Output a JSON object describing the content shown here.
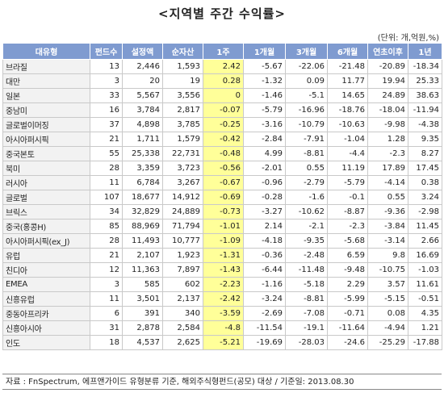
{
  "title": "<지역별 주간 수익률>",
  "unit": "(단위: 개,억원,%)",
  "columns": [
    "대유형",
    "펀드수",
    "설정액",
    "순자산",
    "1주",
    "1개월",
    "3개월",
    "6개월",
    "연초이후",
    "1년"
  ],
  "rows": [
    [
      "브라질",
      "13",
      "2,446",
      "1,593",
      "2.42",
      "-5.67",
      "-22.06",
      "-21.48",
      "-20.89",
      "-18.34"
    ],
    [
      "대만",
      "3",
      "20",
      "19",
      "0.28",
      "-1.32",
      "0.09",
      "11.77",
      "19.94",
      "25.33"
    ],
    [
      "일본",
      "33",
      "5,567",
      "3,556",
      "0",
      "-1.46",
      "-5.1",
      "14.65",
      "24.89",
      "38.63"
    ],
    [
      "중남미",
      "16",
      "3,784",
      "2,817",
      "-0.07",
      "-5.79",
      "-16.96",
      "-18.76",
      "-18.04",
      "-11.94"
    ],
    [
      "글로벌이머징",
      "37",
      "4,898",
      "3,785",
      "-0.25",
      "-3.16",
      "-10.79",
      "-10.63",
      "-9.98",
      "-4.38"
    ],
    [
      "아시아퍼시픽",
      "21",
      "1,711",
      "1,579",
      "-0.42",
      "-2.84",
      "-7.91",
      "-1.04",
      "1.28",
      "9.35"
    ],
    [
      "중국본토",
      "55",
      "25,338",
      "22,731",
      "-0.48",
      "4.99",
      "-8.81",
      "-4.4",
      "-2.3",
      "8.27"
    ],
    [
      "북미",
      "28",
      "3,359",
      "3,723",
      "-0.56",
      "-2.01",
      "0.55",
      "11.19",
      "17.89",
      "17.45"
    ],
    [
      "러시아",
      "11",
      "6,784",
      "3,267",
      "-0.67",
      "-0.96",
      "-2.79",
      "-5.79",
      "-4.14",
      "0.38"
    ],
    [
      "글로벌",
      "107",
      "18,677",
      "14,912",
      "-0.69",
      "-0.28",
      "-1.6",
      "-0.1",
      "0.55",
      "3.24"
    ],
    [
      "브릭스",
      "34",
      "32,829",
      "24,889",
      "-0.73",
      "-3.27",
      "-10.62",
      "-8.87",
      "-9.36",
      "-2.98"
    ],
    [
      "중국(홍콩H)",
      "85",
      "88,969",
      "71,794",
      "-1.01",
      "2.14",
      "-2.1",
      "-2.3",
      "-3.84",
      "11.45"
    ],
    [
      "아시아퍼시픽(ex_J)",
      "28",
      "11,493",
      "10,777",
      "-1.09",
      "-4.18",
      "-9.35",
      "-5.68",
      "-3.14",
      "2.66"
    ],
    [
      "유럽",
      "21",
      "2,107",
      "1,923",
      "-1.31",
      "-0.36",
      "-2.48",
      "6.59",
      "9.8",
      "16.69"
    ],
    [
      "친디아",
      "12",
      "11,363",
      "7,897",
      "-1.43",
      "-6.44",
      "-11.48",
      "-9.48",
      "-10.75",
      "-1.03"
    ],
    [
      "EMEA",
      "3",
      "585",
      "602",
      "-2.23",
      "-1.16",
      "-5.18",
      "2.29",
      "3.57",
      "11.61"
    ],
    [
      "신흥유럽",
      "11",
      "3,501",
      "2,137",
      "-2.42",
      "-3.24",
      "-8.81",
      "-5.99",
      "-5.15",
      "-0.51"
    ],
    [
      "중동아프리카",
      "6",
      "391",
      "340",
      "-3.59",
      "-2.69",
      "-7.08",
      "-0.71",
      "0.08",
      "4.35"
    ],
    [
      "신흥아시아",
      "31",
      "2,878",
      "2,584",
      "-4.8",
      "-11.54",
      "-19.1",
      "-11.64",
      "-4.94",
      "1.21"
    ],
    [
      "인도",
      "18",
      "4,537",
      "2,625",
      "-5.21",
      "-19.69",
      "-28.03",
      "-24.6",
      "-25.29",
      "-17.88"
    ]
  ],
  "footnote": "자료 : FnSpectrum, 에프앤가이드 유형분류 기준, 해외주식형펀드(공모) 대상 / 기준일: 2013.08.30",
  "colors": {
    "header_bg": "#7f9bd0",
    "highlight": "#ffff99",
    "name_bg": "#f2f2f2"
  }
}
